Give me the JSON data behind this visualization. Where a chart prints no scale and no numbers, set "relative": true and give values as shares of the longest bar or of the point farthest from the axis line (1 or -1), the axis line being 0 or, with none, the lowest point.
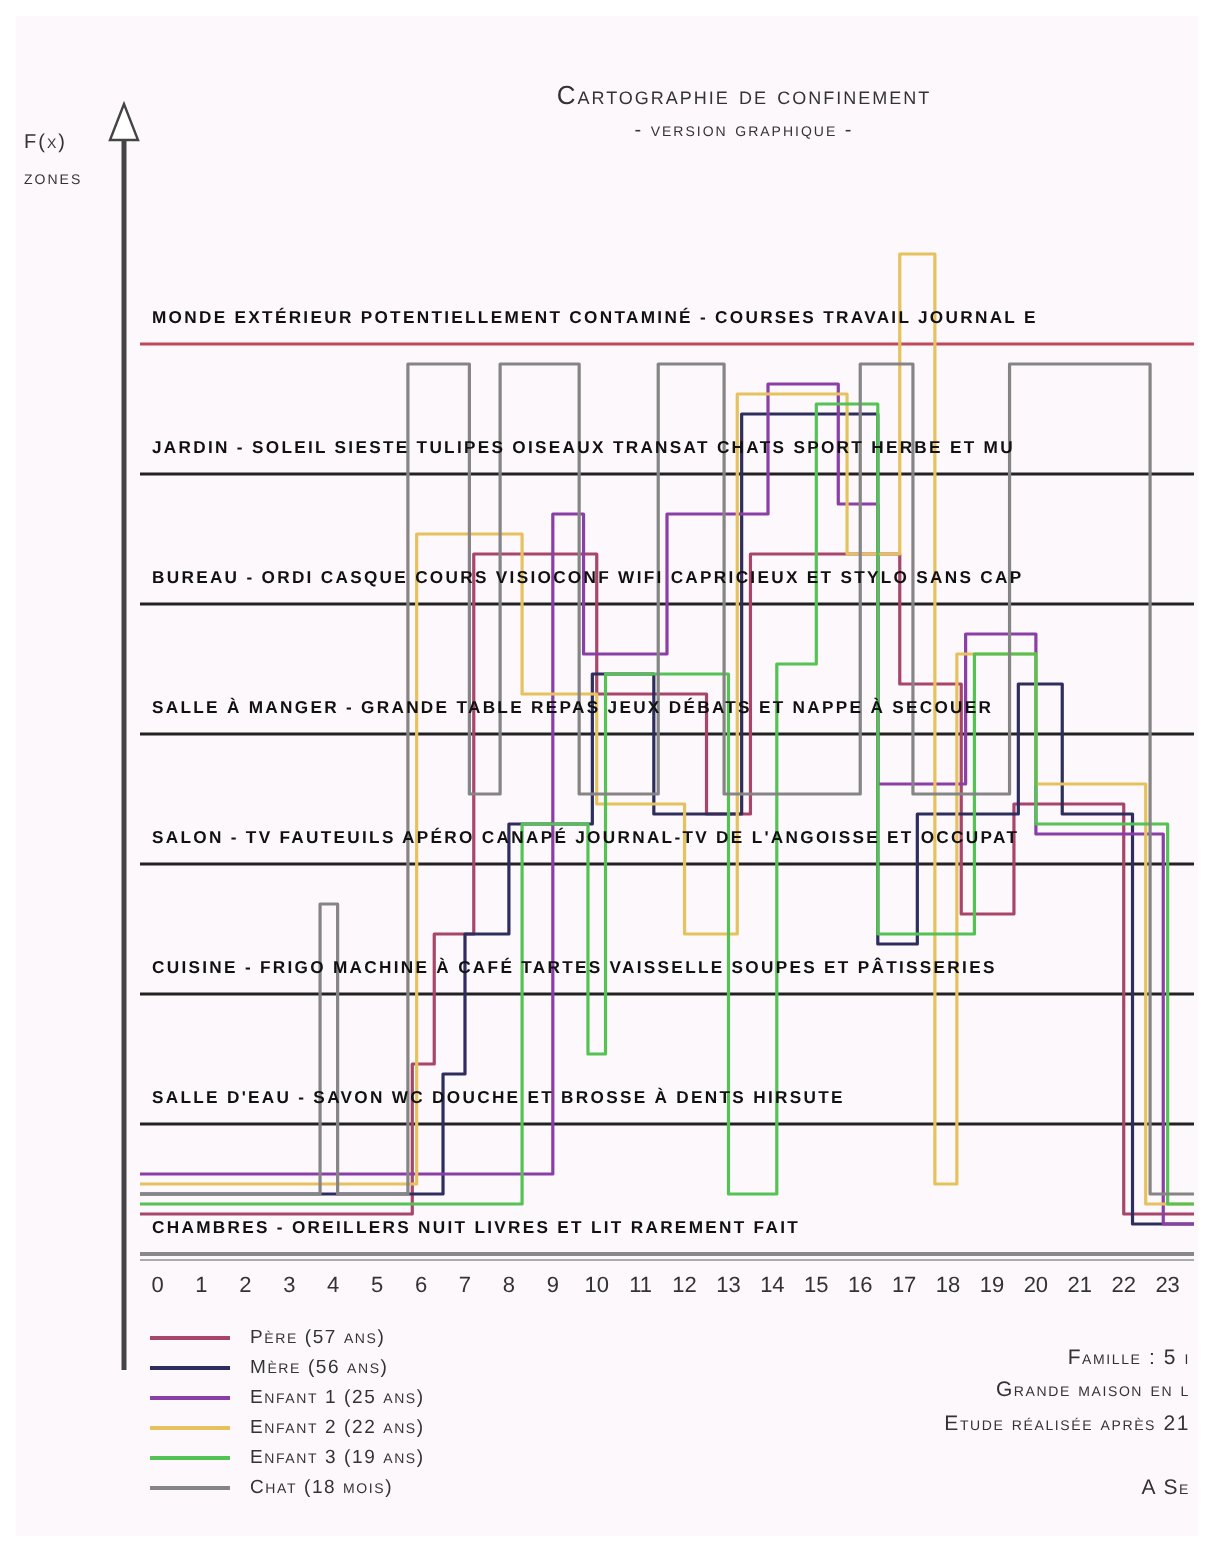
{
  "chart_data": {
    "type": "step",
    "title": "Cartographie de confinement",
    "subtitle": "- version graphique -",
    "ylabel": "F(x) zones",
    "relative": true,
    "xlim": [
      -0.4,
      23.6
    ],
    "xticks": [
      0,
      1,
      2,
      3,
      4,
      5,
      6,
      7,
      8,
      9,
      10,
      11,
      12,
      13,
      14,
      15,
      16,
      17,
      18,
      19,
      20,
      21,
      22,
      23
    ],
    "ref_lines": [
      {
        "axis": "y",
        "value": 0,
        "label": "CHAMBRES - OREILLERS NUIT LIVRES ET LIT RAREMENT FAIT",
        "color": "#888888"
      },
      {
        "axis": "y",
        "value": 0.13,
        "label": "SALLE D'EAU - SAVON WC DOUCHE ET BROSSE À DENTS HIRSUTE",
        "color": "#222222"
      },
      {
        "axis": "y",
        "value": 0.26,
        "label": "CUISINE - FRIGO MACHINE À CAFÉ TARTES VAISSELLE SOUPES ET PÂTISSERIES",
        "color": "#222222"
      },
      {
        "axis": "y",
        "value": 0.39,
        "label": "SALON - TV FAUTEUILS APÉRO CANAPÉ JOURNAL-TV DE L'ANGOISSE ET OCCUPAT",
        "color": "#222222"
      },
      {
        "axis": "y",
        "value": 0.52,
        "label": "SALLE À MANGER - GRANDE TABLE REPAS JEUX DÉBATS ET NAPPE À SECOUER",
        "color": "#222222"
      },
      {
        "axis": "y",
        "value": 0.65,
        "label": "BUREAU - ORDI CASQUE COURS VISIOCONF WIFI CAPRICIEUX ET STYLO SANS CAP",
        "color": "#222222"
      },
      {
        "axis": "y",
        "value": 0.78,
        "label": "JARDIN - SOLEIL SIESTE TULIPES OISEAUX TRANSAT CHATS SPORT HERBE ET MU",
        "color": "#222222"
      },
      {
        "axis": "y",
        "value": 0.91,
        "label": "MONDE EXTÉRIEUR POTENTIELLEMENT CONTAMINÉ - COURSES TRAVAIL JOURNAL E",
        "color": "#c0485a"
      }
    ],
    "legend": "bottom left",
    "series": [
      {
        "name": "Père (57 ans)",
        "color": "#a8456a",
        "x": [
          -0.4,
          5.8,
          6.3,
          7.2,
          10,
          12.5,
          13.5,
          16.9,
          18.3,
          19.5,
          22,
          23.6
        ],
        "values": [
          0.04,
          0.19,
          0.32,
          0.7,
          0.56,
          0.44,
          0.7,
          0.57,
          0.34,
          0.45,
          0.04,
          0.04
        ]
      },
      {
        "name": "Mère (56 ans)",
        "color": "#2e2e5e",
        "x": [
          -0.4,
          6.5,
          7,
          8,
          9.9,
          11.3,
          13.3,
          16.4,
          17.3,
          19.6,
          20.6,
          22.2,
          23.6
        ],
        "values": [
          0.06,
          0.18,
          0.32,
          0.43,
          0.58,
          0.44,
          0.84,
          0.31,
          0.44,
          0.57,
          0.44,
          0.03,
          0.03
        ]
      },
      {
        "name": "Enfant 1 (25 ans)",
        "color": "#8a3fa6",
        "x": [
          -0.4,
          9,
          9.7,
          11.6,
          13.9,
          15.5,
          16.4,
          18.4,
          20,
          22.9,
          23.6
        ],
        "values": [
          0.08,
          0.74,
          0.6,
          0.74,
          0.87,
          0.75,
          0.47,
          0.62,
          0.42,
          0.03,
          0.03
        ]
      },
      {
        "name": "Enfant 2 (22 ans)",
        "color": "#e6c25e",
        "x": [
          -0.4,
          5.9,
          8.3,
          10,
          12,
          13.2,
          15.7,
          16.9,
          17.7,
          18.2,
          20,
          22.5,
          23.6
        ],
        "values": [
          0.07,
          0.72,
          0.56,
          0.45,
          0.32,
          0.86,
          0.7,
          1,
          0.07,
          0.6,
          0.47,
          0.05,
          0.05
        ]
      },
      {
        "name": "Enfant 3 (19 ans)",
        "color": "#55c255",
        "x": [
          -0.4,
          8.3,
          9.8,
          10.2,
          13,
          14.1,
          15,
          16.4,
          18.6,
          20,
          23,
          23.6
        ],
        "values": [
          0.05,
          0.43,
          0.2,
          0.58,
          0.06,
          0.59,
          0.85,
          0.32,
          0.6,
          0.43,
          0.05,
          0.05
        ]
      },
      {
        "name": "Chat (18 mois)",
        "color": "#858585",
        "x": [
          -0.4,
          3.7,
          4.1,
          5.7,
          7.1,
          7.8,
          9.6,
          11.4,
          12.9,
          16,
          17.2,
          19.4,
          22.6,
          23.6
        ],
        "values": [
          0.06,
          0.35,
          0.06,
          0.89,
          0.46,
          0.89,
          0.46,
          0.89,
          0.46,
          0.89,
          0.46,
          0.89,
          0.06,
          0.06
        ]
      }
    ],
    "annotations": [
      "Famille : 5 i",
      "Grande maison en l",
      "Etude réalisée après 21",
      "A Se"
    ]
  }
}
